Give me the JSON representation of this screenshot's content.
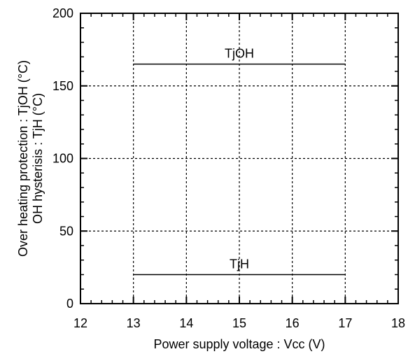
{
  "chart_data": {
    "type": "line",
    "title": "",
    "xlabel": "Power supply voltage : Vcc (V)",
    "ylabel_lines": [
      "Over heating protection : TjOH (°C)",
      "OH hysterisis : TjH (°C)"
    ],
    "xlim": [
      12,
      18
    ],
    "ylim": [
      0,
      200
    ],
    "x_ticks": [
      12,
      13,
      14,
      15,
      16,
      17,
      18
    ],
    "x_tick_labels": [
      "12",
      "13",
      "14",
      "15",
      "16",
      "17",
      "18"
    ],
    "y_ticks": [
      0,
      50,
      100,
      150,
      200
    ],
    "y_tick_labels": [
      "0",
      "50",
      "100",
      "150",
      "200"
    ],
    "grid": true,
    "grid_style": "dashed",
    "series": [
      {
        "name": "TjOH",
        "x": [
          13,
          17
        ],
        "y": [
          165,
          165
        ]
      },
      {
        "name": "TjH",
        "x": [
          13,
          17
        ],
        "y": [
          20,
          20
        ]
      }
    ]
  }
}
